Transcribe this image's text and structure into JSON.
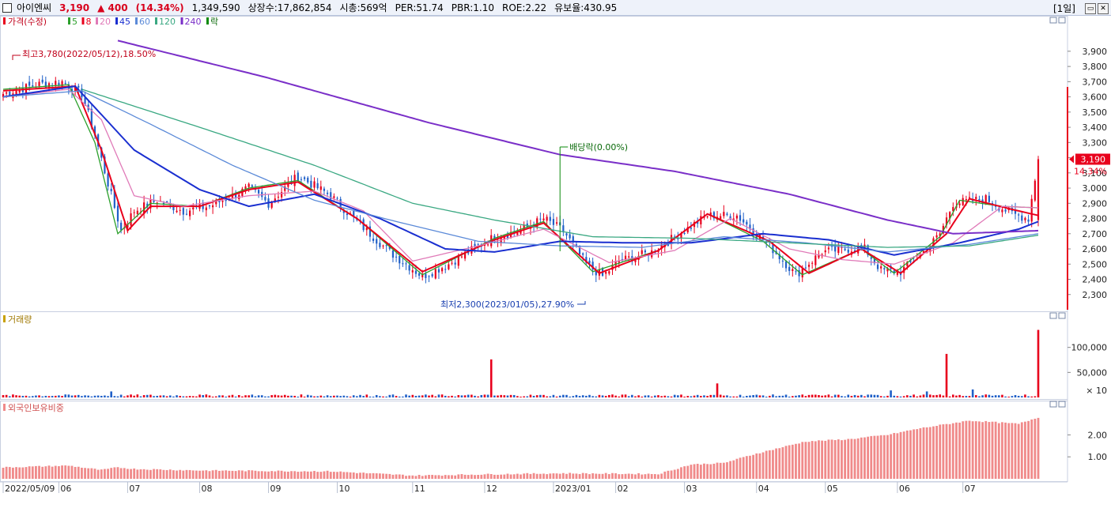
{
  "header": {
    "stock_name": "아이엔씨",
    "price": "3,190",
    "change": "▲ 400",
    "change_pct": "(14.34%)",
    "volume": "1,349,590",
    "shares": "상장수:17,862,854",
    "market_cap": "시총:569억",
    "per": "PER:51.74",
    "pbr": "PBR:1.10",
    "roe": "ROE:2.22",
    "reserve": "유보율:430.95",
    "period": "[1일]"
  },
  "legend": {
    "price_label": "가격(수정)",
    "ma": [
      {
        "label": "5",
        "color": "#2ca02c"
      },
      {
        "label": "8",
        "color": "#e8001c"
      },
      {
        "label": "20",
        "color": "#e07ab8"
      },
      {
        "label": "45",
        "color": "#1a2fd0"
      },
      {
        "label": "60",
        "color": "#5b8ad8"
      },
      {
        "label": "120",
        "color": "#3aa882"
      },
      {
        "label": "240",
        "color": "#7a2fc8"
      }
    ],
    "ex_label": "락",
    "volume_label": "거래량",
    "foreign_label": "외국인보유비중"
  },
  "annotations": {
    "high": "최고3,780(2022/05/12),18.50%",
    "low": "최저2,300(2023/01/05),27.90%",
    "dividend": "배당락(0.00%)",
    "last_price": "3,190",
    "last_pct": "14.34%",
    "vol_unit": "× 10"
  },
  "colors": {
    "up": "#e8001c",
    "down": "#2060c8",
    "panel_border": "#c8cfe0",
    "foreign_bar": "#f08a8a"
  },
  "chart_data": [
    {
      "type": "candlestick",
      "title": "가격(수정)",
      "ylim": [
        2200,
        4050
      ],
      "yticks": [
        2300,
        2400,
        2500,
        2600,
        2700,
        2800,
        2900,
        3000,
        3100,
        3200,
        3300,
        3400,
        3500,
        3600,
        3700,
        3800,
        3900
      ],
      "ytick_labels": [
        "2,300",
        "2,400",
        "2,500",
        "2,600",
        "2,700",
        "2,800",
        "2,900",
        "3,000",
        "3,100",
        "3,200",
        "3,300",
        "3,400",
        "3,500",
        "3,600",
        "3,700",
        "3,800",
        "3,900"
      ],
      "xtick_labels": [
        "2022/05/09",
        "06",
        "07",
        "08",
        "09",
        "10",
        "11",
        "12",
        "2023/01",
        "02",
        "03",
        "04",
        "05",
        "06",
        "07"
      ],
      "anchors": [
        [
          0,
          3620
        ],
        [
          10,
          3680
        ],
        [
          18,
          3700
        ],
        [
          24,
          3620
        ],
        [
          28,
          3350
        ],
        [
          33,
          2950
        ],
        [
          36,
          2720
        ],
        [
          40,
          2850
        ],
        [
          47,
          2920
        ],
        [
          55,
          2850
        ],
        [
          63,
          2880
        ],
        [
          75,
          3000
        ],
        [
          81,
          2900
        ],
        [
          90,
          3080
        ],
        [
          100,
          2950
        ],
        [
          108,
          2780
        ],
        [
          118,
          2580
        ],
        [
          128,
          2420
        ],
        [
          136,
          2500
        ],
        [
          142,
          2580
        ],
        [
          150,
          2680
        ],
        [
          158,
          2720
        ],
        [
          165,
          2800
        ],
        [
          171,
          2720
        ],
        [
          178,
          2500
        ],
        [
          183,
          2420
        ],
        [
          188,
          2520
        ],
        [
          198,
          2580
        ],
        [
          208,
          2720
        ],
        [
          215,
          2820
        ],
        [
          224,
          2820
        ],
        [
          234,
          2620
        ],
        [
          242,
          2430
        ],
        [
          250,
          2580
        ],
        [
          258,
          2600
        ],
        [
          263,
          2600
        ],
        [
          268,
          2460
        ],
        [
          274,
          2450
        ],
        [
          282,
          2600
        ],
        [
          286,
          2700
        ],
        [
          290,
          2900
        ],
        [
          300,
          2930
        ],
        [
          308,
          2830
        ],
        [
          313,
          2800
        ],
        [
          316,
          3190
        ]
      ],
      "ma_series": [
        {
          "name": "5",
          "color": "#2ca02c",
          "points": [
            [
              0,
              3650
            ],
            [
              20,
              3680
            ],
            [
              28,
              3300
            ],
            [
              35,
              2700
            ],
            [
              45,
              2900
            ],
            [
              60,
              2880
            ],
            [
              75,
              3000
            ],
            [
              90,
              3050
            ],
            [
              108,
              2800
            ],
            [
              128,
              2430
            ],
            [
              150,
              2670
            ],
            [
              165,
              2780
            ],
            [
              180,
              2450
            ],
            [
              200,
              2590
            ],
            [
              215,
              2830
            ],
            [
              232,
              2650
            ],
            [
              244,
              2430
            ],
            [
              262,
              2600
            ],
            [
              272,
              2440
            ],
            [
              286,
              2680
            ],
            [
              292,
              2920
            ],
            [
              305,
              2880
            ],
            [
              316,
              2870
            ]
          ]
        },
        {
          "name": "8",
          "color": "#e8001c",
          "points": [
            [
              0,
              3640
            ],
            [
              22,
              3670
            ],
            [
              30,
              3250
            ],
            [
              38,
              2720
            ],
            [
              45,
              2880
            ],
            [
              60,
              2880
            ],
            [
              75,
              2990
            ],
            [
              90,
              3040
            ],
            [
              108,
              2800
            ],
            [
              128,
              2450
            ],
            [
              150,
              2660
            ],
            [
              165,
              2770
            ],
            [
              182,
              2440
            ],
            [
              200,
              2590
            ],
            [
              215,
              2830
            ],
            [
              234,
              2650
            ],
            [
              246,
              2440
            ],
            [
              262,
              2600
            ],
            [
              274,
              2440
            ],
            [
              288,
              2700
            ],
            [
              295,
              2930
            ],
            [
              308,
              2860
            ],
            [
              316,
              2820
            ]
          ]
        },
        {
          "name": "20",
          "color": "#e07ab8",
          "points": [
            [
              0,
              3600
            ],
            [
              20,
              3650
            ],
            [
              30,
              3450
            ],
            [
              40,
              2950
            ],
            [
              55,
              2880
            ],
            [
              75,
              2950
            ],
            [
              95,
              2980
            ],
            [
              110,
              2850
            ],
            [
              125,
              2520
            ],
            [
              145,
              2620
            ],
            [
              165,
              2730
            ],
            [
              185,
              2510
            ],
            [
              205,
              2590
            ],
            [
              222,
              2800
            ],
            [
              240,
              2600
            ],
            [
              256,
              2530
            ],
            [
              272,
              2500
            ],
            [
              290,
              2640
            ],
            [
              305,
              2880
            ],
            [
              316,
              2870
            ]
          ]
        },
        {
          "name": "45",
          "color": "#1a2fd0",
          "points": [
            [
              0,
              3600
            ],
            [
              22,
              3670
            ],
            [
              40,
              3250
            ],
            [
              60,
              2990
            ],
            [
              75,
              2880
            ],
            [
              95,
              2960
            ],
            [
              115,
              2800
            ],
            [
              135,
              2600
            ],
            [
              150,
              2580
            ],
            [
              170,
              2650
            ],
            [
              190,
              2640
            ],
            [
              210,
              2640
            ],
            [
              232,
              2700
            ],
            [
              252,
              2660
            ],
            [
              272,
              2560
            ],
            [
              292,
              2640
            ],
            [
              310,
              2730
            ],
            [
              316,
              2780
            ]
          ]
        },
        {
          "name": "60",
          "color": "#5b8ad8",
          "points": [
            [
              0,
              3600
            ],
            [
              24,
              3640
            ],
            [
              45,
              3420
            ],
            [
              70,
              3150
            ],
            [
              95,
              2920
            ],
            [
              120,
              2780
            ],
            [
              145,
              2650
            ],
            [
              170,
              2620
            ],
            [
              195,
              2610
            ],
            [
              220,
              2680
            ],
            [
              245,
              2640
            ],
            [
              270,
              2580
            ],
            [
              295,
              2630
            ],
            [
              316,
              2700
            ]
          ]
        },
        {
          "name": "120",
          "color": "#3aa882",
          "points": [
            [
              24,
              3650
            ],
            [
              60,
              3400
            ],
            [
              95,
              3150
            ],
            [
              125,
              2900
            ],
            [
              150,
              2790
            ],
            [
              180,
              2680
            ],
            [
              210,
              2670
            ],
            [
              240,
              2640
            ],
            [
              270,
              2610
            ],
            [
              295,
              2620
            ],
            [
              316,
              2690
            ]
          ]
        },
        {
          "name": "240",
          "color": "#7a2fc8",
          "points": [
            [
              35,
              3970
            ],
            [
              80,
              3730
            ],
            [
              130,
              3430
            ],
            [
              170,
              3220
            ],
            [
              205,
              3110
            ],
            [
              240,
              2960
            ],
            [
              270,
              2790
            ],
            [
              290,
              2700
            ],
            [
              316,
              2720
            ]
          ]
        }
      ]
    },
    {
      "type": "bar",
      "title": "거래량",
      "ylim": [
        0,
        1500000
      ],
      "yticks": [
        500000,
        1000000
      ],
      "ytick_labels": [
        "50,000",
        "100,000"
      ],
      "spikes": [
        [
          33,
          120000
        ],
        [
          149,
          760000
        ],
        [
          218,
          280000
        ],
        [
          271,
          140000
        ],
        [
          282,
          120000
        ],
        [
          288,
          870000
        ],
        [
          296,
          160000
        ],
        [
          316,
          1349590
        ]
      ]
    },
    {
      "type": "bar",
      "title": "외국인보유비중",
      "ylim": [
        0,
        3.2
      ],
      "yticks": [
        1.0,
        2.0
      ],
      "ytick_labels": [
        "1.00",
        "2.00"
      ],
      "anchors": [
        [
          0,
          0.52
        ],
        [
          20,
          0.6
        ],
        [
          30,
          0.4
        ],
        [
          35,
          0.52
        ],
        [
          40,
          0.45
        ],
        [
          60,
          0.38
        ],
        [
          100,
          0.34
        ],
        [
          125,
          0.15
        ],
        [
          145,
          0.2
        ],
        [
          170,
          0.25
        ],
        [
          200,
          0.22
        ],
        [
          210,
          0.65
        ],
        [
          220,
          0.72
        ],
        [
          230,
          1.15
        ],
        [
          245,
          1.7
        ],
        [
          258,
          1.8
        ],
        [
          270,
          2.0
        ],
        [
          280,
          2.3
        ],
        [
          295,
          2.65
        ],
        [
          305,
          2.55
        ],
        [
          310,
          2.5
        ],
        [
          316,
          2.8
        ]
      ]
    }
  ]
}
